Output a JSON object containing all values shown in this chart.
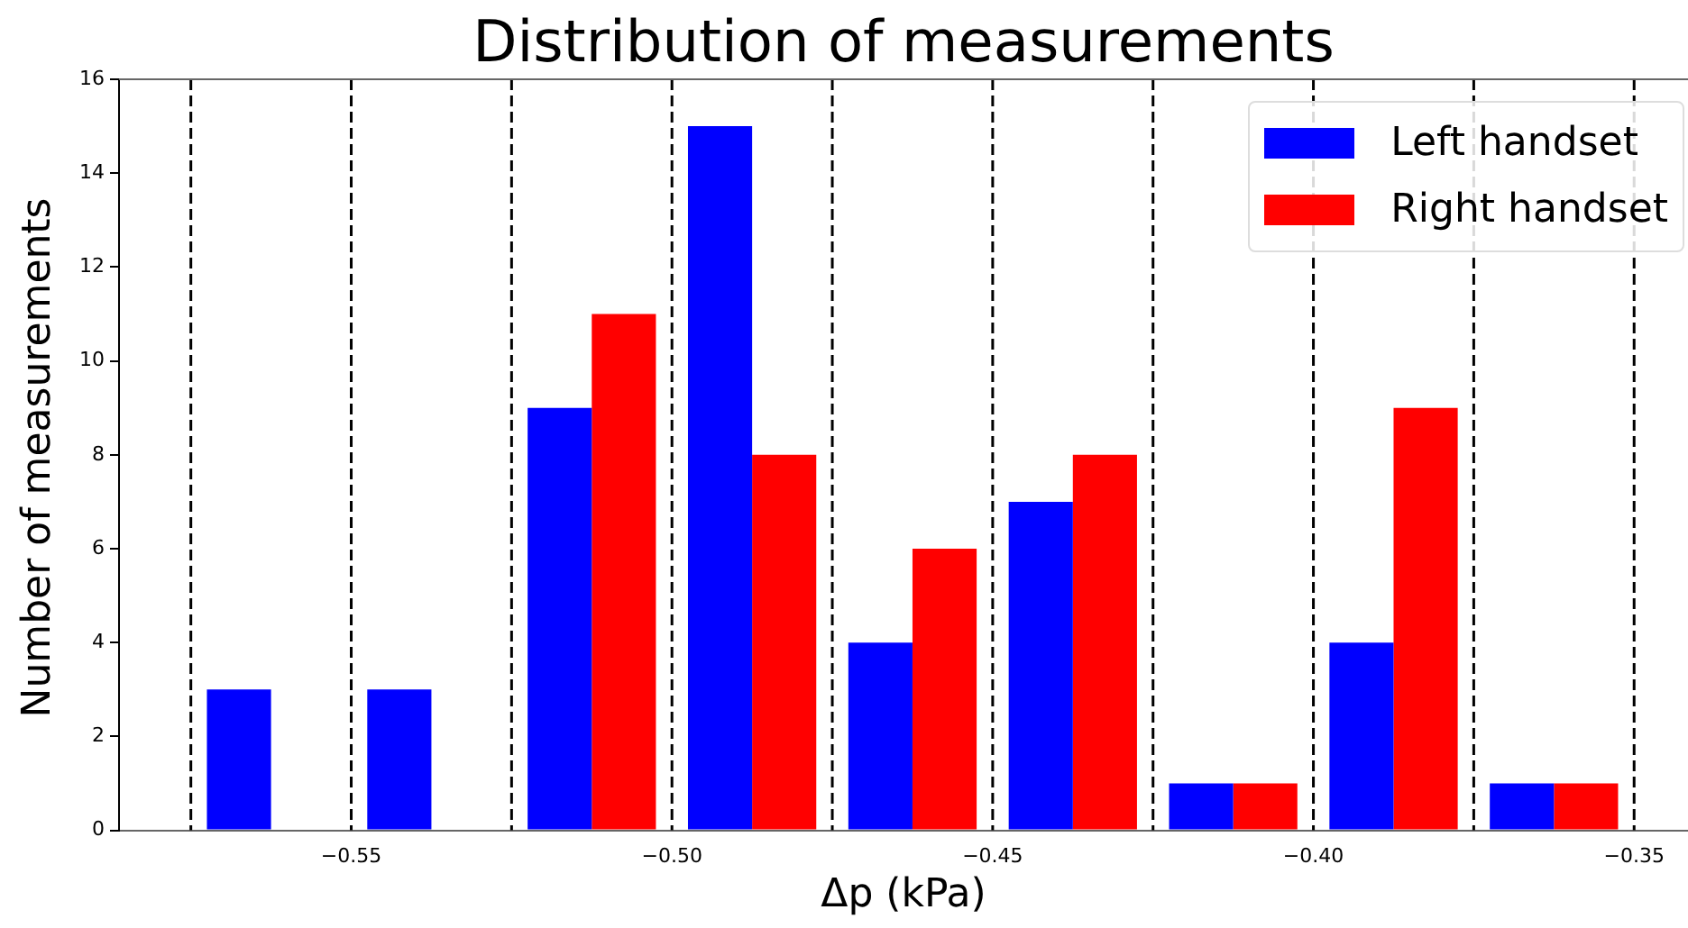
{
  "chart_data": {
    "type": "histogram",
    "title": "Distribution of measurements",
    "xlabel": "Δp (kPa)",
    "ylabel": "Number of measurements",
    "bins": [
      -0.575,
      -0.55,
      -0.525,
      -0.5,
      -0.475,
      -0.45,
      -0.425,
      -0.4,
      -0.375,
      -0.35
    ],
    "series": [
      {
        "name": "Left handset",
        "color": "#0000ff",
        "values": [
          3,
          3,
          9,
          15,
          4,
          7,
          1,
          4,
          1
        ]
      },
      {
        "name": "Right handset",
        "color": "#ff0000",
        "values": [
          0,
          0,
          11,
          8,
          6,
          8,
          1,
          9,
          1
        ]
      }
    ],
    "xlim": [
      -0.5862,
      -0.3416
    ],
    "xticks": [
      {
        "value": -0.55,
        "label": "−0.55"
      },
      {
        "value": -0.5,
        "label": "−0.50"
      },
      {
        "value": -0.45,
        "label": "−0.45"
      },
      {
        "value": -0.4,
        "label": "−0.40"
      },
      {
        "value": -0.35,
        "label": "−0.35"
      }
    ],
    "ylim": [
      0,
      16
    ],
    "yticks": [
      0,
      2,
      4,
      6,
      8,
      10,
      12,
      14,
      16
    ],
    "ref_lines": [
      {
        "axis": "x",
        "value": -0.575,
        "color": "#000000",
        "line_style": "dashed"
      },
      {
        "axis": "x",
        "value": -0.55,
        "color": "#000000",
        "line_style": "dashed"
      },
      {
        "axis": "x",
        "value": -0.525,
        "color": "#000000",
        "line_style": "dashed"
      },
      {
        "axis": "x",
        "value": -0.5,
        "color": "#000000",
        "line_style": "dashed"
      },
      {
        "axis": "x",
        "value": -0.475,
        "color": "#000000",
        "line_style": "dashed"
      },
      {
        "axis": "x",
        "value": -0.45,
        "color": "#000000",
        "line_style": "dashed"
      },
      {
        "axis": "x",
        "value": -0.425,
        "color": "#000000",
        "line_style": "dashed"
      },
      {
        "axis": "x",
        "value": -0.4,
        "color": "#000000",
        "line_style": "dashed"
      },
      {
        "axis": "x",
        "value": -0.375,
        "color": "#000000",
        "line_style": "dashed"
      },
      {
        "axis": "x",
        "value": -0.35,
        "color": "#000000",
        "line_style": "dashed"
      }
    ],
    "grid": false,
    "legend": "top right"
  }
}
